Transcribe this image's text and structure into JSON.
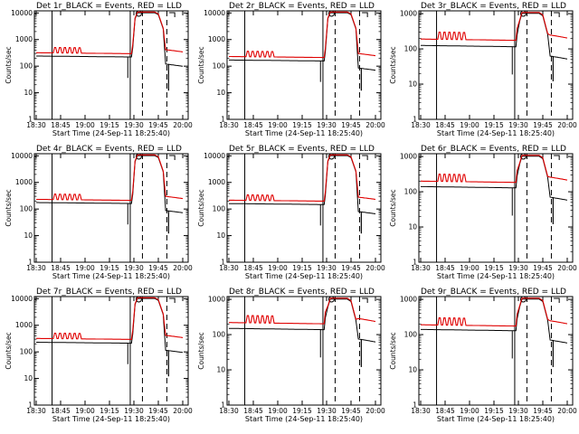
{
  "figure": {
    "axis_colors": {
      "frame": "#000000",
      "events": "#000000",
      "lld": "#e00000"
    }
  },
  "chart_data": [
    {
      "type": "line",
      "title": "Det 1r_BLACK = Events, RED = LLD",
      "xlabel": "Start Time (24-Sep-11 18:25:40)",
      "ylabel": "Counts/sec",
      "yscale": "log",
      "ylim": [
        1,
        12000
      ],
      "xticks": [
        "18:30",
        "18:45",
        "19:00",
        "19:15",
        "19:30",
        "19:45",
        "20:00"
      ],
      "yticks": [
        "1",
        "10",
        "100",
        "1000",
        "10000"
      ],
      "series": [
        {
          "name": "Events",
          "color": "#000000",
          "level": 240
        },
        {
          "name": "LLD",
          "color": "#e00000",
          "level": 320
        }
      ]
    },
    {
      "type": "line",
      "title": "Det 2r_BLACK = Events, RED = LLD",
      "xlabel": "Start Time (24-Sep-11 18:25:40)",
      "ylabel": "Counts/sec",
      "yscale": "log",
      "ylim": [
        1,
        12000
      ],
      "xticks": [
        "18:30",
        "18:45",
        "19:00",
        "19:15",
        "19:30",
        "19:45",
        "20:00"
      ],
      "yticks": [
        "1",
        "10",
        "100",
        "1000",
        "10000"
      ],
      "series": [
        {
          "name": "Events",
          "color": "#000000",
          "level": 170
        },
        {
          "name": "LLD",
          "color": "#e00000",
          "level": 230
        }
      ]
    },
    {
      "type": "line",
      "title": "Det 3r_BLACK = Events, RED = LLD",
      "xlabel": "Start Time (24-Sep-11 18:25:40)",
      "ylabel": "Counts/sec",
      "yscale": "log",
      "ylim": [
        1,
        1200
      ],
      "xticks": [
        "18:30",
        "18:45",
        "19:00",
        "19:15",
        "19:30",
        "19:45",
        "20:00"
      ],
      "yticks": [
        "1",
        "10",
        "100",
        "1000"
      ],
      "series": [
        {
          "name": "Events",
          "color": "#000000",
          "level": 125
        },
        {
          "name": "LLD",
          "color": "#e00000",
          "level": 190
        }
      ]
    },
    {
      "type": "line",
      "title": "Det 4r_BLACK = Events, RED = LLD",
      "xlabel": "Start Time (24-Sep-11 18:25:40)",
      "ylabel": "Counts/sec",
      "yscale": "log",
      "ylim": [
        1,
        12000
      ],
      "xticks": [
        "18:30",
        "18:45",
        "19:00",
        "19:15",
        "19:30",
        "19:45",
        "20:00"
      ],
      "yticks": [
        "1",
        "10",
        "100",
        "1000",
        "10000"
      ],
      "series": [
        {
          "name": "Events",
          "color": "#000000",
          "level": 175
        },
        {
          "name": "LLD",
          "color": "#e00000",
          "level": 230
        }
      ]
    },
    {
      "type": "line",
      "title": "Det 5r_BLACK = Events, RED = LLD",
      "xlabel": "Start Time (24-Sep-11 18:25:40)",
      "ylabel": "Counts/sec",
      "yscale": "log",
      "ylim": [
        1,
        12000
      ],
      "xticks": [
        "18:30",
        "18:45",
        "19:00",
        "19:15",
        "19:30",
        "19:45",
        "20:00"
      ],
      "yticks": [
        "1",
        "10",
        "100",
        "1000",
        "10000"
      ],
      "series": [
        {
          "name": "Events",
          "color": "#000000",
          "level": 160
        },
        {
          "name": "LLD",
          "color": "#e00000",
          "level": 215
        }
      ]
    },
    {
      "type": "line",
      "title": "Det 6r_BLACK = Events, RED = LLD",
      "xlabel": "Start Time (24-Sep-11 18:25:40)",
      "ylabel": "Counts/sec",
      "yscale": "log",
      "ylim": [
        1,
        1200
      ],
      "xticks": [
        "18:30",
        "18:45",
        "19:00",
        "19:15",
        "19:30",
        "19:45",
        "20:00"
      ],
      "yticks": [
        "1",
        "10",
        "100",
        "1000"
      ],
      "series": [
        {
          "name": "Events",
          "color": "#000000",
          "level": 140
        },
        {
          "name": "LLD",
          "color": "#e00000",
          "level": 200
        }
      ]
    },
    {
      "type": "line",
      "title": "Det 7r_BLACK = Events, RED = LLD",
      "xlabel": "Start Time (24-Sep-11 18:25:40)",
      "ylabel": "Counts/sec",
      "yscale": "log",
      "ylim": [
        1,
        12000
      ],
      "xticks": [
        "18:30",
        "18:45",
        "19:00",
        "19:15",
        "19:30",
        "19:45",
        "20:00"
      ],
      "yticks": [
        "1",
        "10",
        "100",
        "1000",
        "10000"
      ],
      "series": [
        {
          "name": "Events",
          "color": "#000000",
          "level": 230
        },
        {
          "name": "LLD",
          "color": "#e00000",
          "level": 320
        }
      ]
    },
    {
      "type": "line",
      "title": "Det 8r_BLACK = Events, RED = LLD",
      "xlabel": "Start Time (24-Sep-11 18:25:40)",
      "ylabel": "Counts/sec",
      "yscale": "log",
      "ylim": [
        1,
        1200
      ],
      "xticks": [
        "18:30",
        "18:45",
        "19:00",
        "19:15",
        "19:30",
        "19:45",
        "20:00"
      ],
      "yticks": [
        "1",
        "10",
        "100",
        "1000"
      ],
      "series": [
        {
          "name": "Events",
          "color": "#000000",
          "level": 150
        },
        {
          "name": "LLD",
          "color": "#e00000",
          "level": 220
        }
      ]
    },
    {
      "type": "line",
      "title": "Det 9r_BLACK = Events, RED = LLD",
      "xlabel": "Start Time (24-Sep-11 18:25:40)",
      "ylabel": "Counts/sec",
      "yscale": "log",
      "ylim": [
        1,
        1200
      ],
      "xticks": [
        "18:30",
        "18:45",
        "19:00",
        "19:15",
        "19:30",
        "19:45",
        "20:00"
      ],
      "yticks": [
        "1",
        "10",
        "100",
        "1000"
      ],
      "series": [
        {
          "name": "Events",
          "color": "#000000",
          "level": 140
        },
        {
          "name": "LLD",
          "color": "#e00000",
          "level": 190
        }
      ]
    }
  ]
}
